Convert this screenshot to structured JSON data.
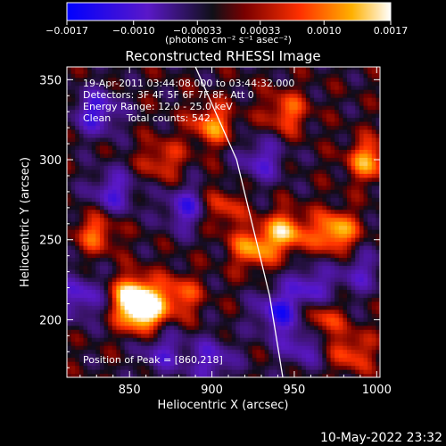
{
  "chart_data": {
    "type": "heatmap",
    "title": "Reconstructed RHESSI Image",
    "xlabel": "Heliocentric X (arcsec)",
    "ylabel": "Heliocentric Y (arcsec)",
    "xlim": [
      812,
      1002
    ],
    "ylim": [
      164,
      358
    ],
    "x_ticks": [
      850,
      900,
      950,
      1000
    ],
    "x_tick_labels": [
      "850",
      "900",
      "950",
      "1000"
    ],
    "y_ticks": [
      200,
      250,
      300,
      350
    ],
    "y_tick_labels": [
      "200",
      "250",
      "300",
      "350"
    ],
    "colorbar": {
      "min": -0.0017,
      "max": 0.0017,
      "ticks": [
        -0.0017,
        -0.001,
        -0.00033,
        0.00033,
        0.001,
        0.0017
      ],
      "tick_labels": [
        "−0.0017",
        "−0.0010",
        "−0.00033",
        "0.00033",
        "0.0010",
        "0.0017"
      ],
      "units": "(photons cm⁻² s⁻¹ asec⁻²)"
    },
    "annotations": [
      "19-Apr-2011 03:44:08.000 to 03:44:32.000",
      "Detectors: 3F 4F 5F 6F 7F 8F, Att 0",
      "Energy Range: 12.0 - 25.0 keV",
      "Clean     Total counts: 542.",
      "Position of Peak = [860,218]"
    ],
    "limb_line": {
      "x": [
        890,
        915,
        935,
        943
      ],
      "y": [
        358,
        300,
        215,
        164
      ]
    },
    "hot_spots": [
      {
        "x": 858,
        "y": 205,
        "intensity": 1.0
      },
      {
        "x": 853,
        "y": 215,
        "intensity": 0.95
      },
      {
        "x": 975,
        "y": 255,
        "intensity": 0.85
      },
      {
        "x": 945,
        "y": 255,
        "intensity": 0.8
      },
      {
        "x": 995,
        "y": 300,
        "intensity": 0.7
      },
      {
        "x": 900,
        "y": 322,
        "intensity": 0.65
      },
      {
        "x": 880,
        "y": 215,
        "intensity": 0.55
      },
      {
        "x": 925,
        "y": 245,
        "intensity": 0.7
      },
      {
        "x": 965,
        "y": 200,
        "intensity": 0.6
      },
      {
        "x": 830,
        "y": 255,
        "intensity": 0.55
      },
      {
        "x": 985,
        "y": 180,
        "intensity": 0.5
      },
      {
        "x": 870,
        "y": 300,
        "intensity": 0.45
      },
      {
        "x": 945,
        "y": 330,
        "intensity": 0.55
      },
      {
        "x": 905,
        "y": 270,
        "intensity": 0.5
      }
    ],
    "cold_spots": [
      {
        "x": 830,
        "y": 330,
        "intensity": -0.7
      },
      {
        "x": 840,
        "y": 280,
        "intensity": -0.6
      },
      {
        "x": 885,
        "y": 270,
        "intensity": -0.65
      },
      {
        "x": 940,
        "y": 205,
        "intensity": -0.7
      },
      {
        "x": 960,
        "y": 220,
        "intensity": -0.6
      },
      {
        "x": 900,
        "y": 175,
        "intensity": -0.55
      },
      {
        "x": 820,
        "y": 215,
        "intensity": -0.6
      },
      {
        "x": 930,
        "y": 300,
        "intensity": -0.55
      },
      {
        "x": 870,
        "y": 180,
        "intensity": -0.5
      },
      {
        "x": 990,
        "y": 230,
        "intensity": -0.45
      },
      {
        "x": 955,
        "y": 185,
        "intensity": -0.55
      }
    ],
    "grid": false
  },
  "footer_date": "10-May-2022 23:32"
}
